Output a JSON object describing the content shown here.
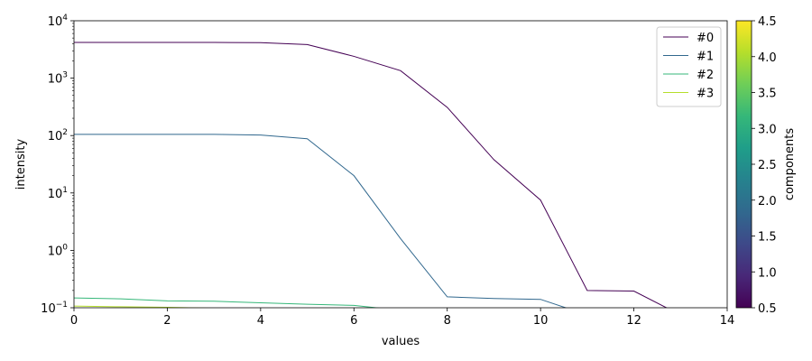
{
  "chart_data": {
    "type": "line",
    "xlabel": "values",
    "ylabel": "intensity",
    "xlim": [
      0,
      14
    ],
    "ylim": [
      0.1,
      10000
    ],
    "yscale": "log",
    "x_ticks": [
      0,
      2,
      4,
      6,
      8,
      10,
      12,
      14
    ],
    "y_ticks": [
      0.1,
      1,
      10,
      100,
      1000,
      10000
    ],
    "y_tick_labels": [
      {
        "base": "10",
        "exp": "−1"
      },
      {
        "base": "10",
        "exp": "0"
      },
      {
        "base": "10",
        "exp": "1"
      },
      {
        "base": "10",
        "exp": "2"
      },
      {
        "base": "10",
        "exp": "3"
      },
      {
        "base": "10",
        "exp": "4"
      }
    ],
    "grid": false,
    "legend_position": "top-right",
    "series": [
      {
        "name": "#0",
        "color": "#440154",
        "x": [
          0,
          1,
          2,
          3,
          4,
          5,
          6,
          7,
          8,
          9,
          10,
          11,
          12,
          13,
          14
        ],
        "values": [
          4200,
          4200,
          4200,
          4200,
          4150,
          3850,
          2400,
          1350,
          310,
          38,
          7.5,
          0.2,
          0.195,
          0.075,
          0.07
        ]
      },
      {
        "name": "#1",
        "color": "#31688e",
        "x": [
          0,
          1,
          2,
          3,
          4,
          5,
          6,
          7,
          8,
          9,
          10,
          11,
          12,
          13,
          14
        ],
        "values": [
          105,
          105,
          105,
          105,
          102,
          88,
          20,
          1.6,
          0.155,
          0.145,
          0.14,
          0.075,
          0.07,
          0.07,
          0.07
        ]
      },
      {
        "name": "#2",
        "color": "#35b779",
        "x": [
          0,
          1,
          2,
          3,
          4,
          5,
          6,
          7,
          8,
          9,
          10,
          11,
          12,
          13,
          14
        ],
        "values": [
          0.148,
          0.143,
          0.132,
          0.13,
          0.122,
          0.115,
          0.11,
          0.09,
          0.085,
          0.08,
          0.08,
          0.08,
          0.08,
          0.08,
          0.08
        ]
      },
      {
        "name": "#3",
        "color": "#b5de2b",
        "x": [
          0,
          1,
          2,
          3,
          4,
          5,
          6,
          7,
          8,
          9,
          10,
          11,
          12,
          13,
          14
        ],
        "values": [
          0.107,
          0.104,
          0.102,
          0.098,
          0.095,
          0.093,
          0.09,
          0.088,
          0.086,
          0.085,
          0.085,
          0.085,
          0.085,
          0.085,
          0.085
        ]
      }
    ],
    "colorbar": {
      "label": "components",
      "colormap": "viridis",
      "range": [
        0.5,
        4.5
      ],
      "ticks": [
        0.5,
        1.0,
        1.5,
        2.0,
        2.5,
        3.0,
        3.5,
        4.0,
        4.5
      ],
      "tick_labels": [
        "0.5",
        "1.0",
        "1.5",
        "2.0",
        "2.5",
        "3.0",
        "3.5",
        "4.0",
        "4.5"
      ],
      "stops": [
        "#440154",
        "#482878",
        "#3e4989",
        "#31688e",
        "#26828e",
        "#1f9e89",
        "#35b779",
        "#6ece58",
        "#b5de2b",
        "#fde725"
      ]
    }
  }
}
